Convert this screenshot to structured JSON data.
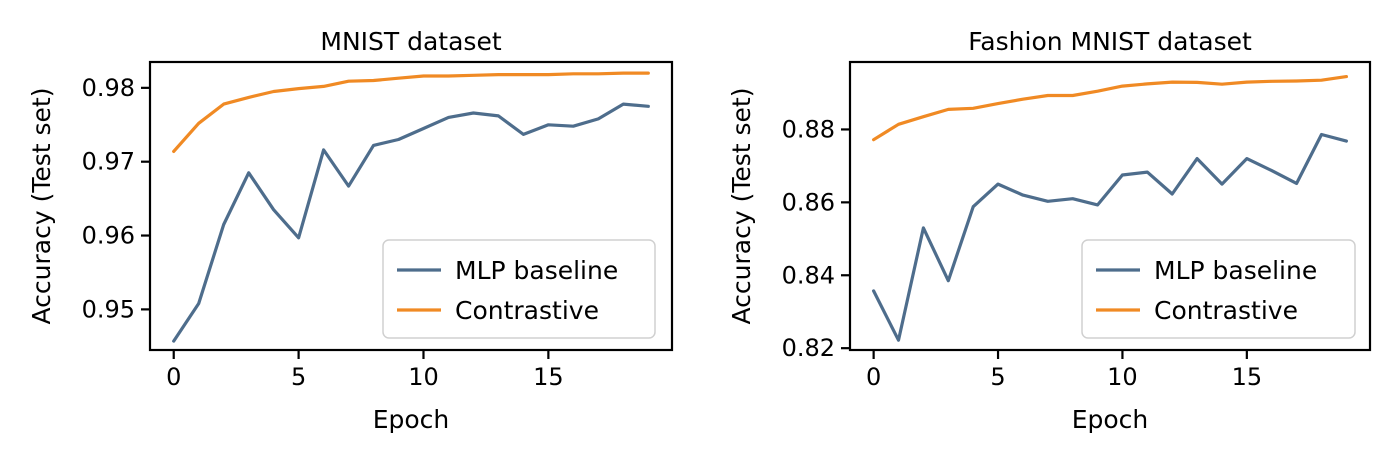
{
  "chart_data": [
    {
      "type": "line",
      "title": "MNIST dataset",
      "xlabel": "Epoch",
      "ylabel": "Accuracy (Test set)",
      "xlim": [
        -0.95,
        19.95
      ],
      "ylim": [
        0.9445,
        0.9835
      ],
      "xticks": [
        0,
        5,
        10,
        15
      ],
      "xtick_labels": [
        "0",
        "5",
        "10",
        "15"
      ],
      "yticks": [
        0.95,
        0.96,
        0.97,
        0.98
      ],
      "ytick_labels": [
        "0.95",
        "0.96",
        "0.97",
        "0.98"
      ],
      "legend": "lower-right",
      "grid": false,
      "x": [
        0,
        1,
        2,
        3,
        4,
        5,
        6,
        7,
        8,
        9,
        10,
        11,
        12,
        13,
        14,
        15,
        16,
        17,
        18,
        19
      ],
      "series": [
        {
          "name": "MLP baseline",
          "color": "#4e6d8c",
          "values": [
            0.9457,
            0.9508,
            0.9615,
            0.9685,
            0.9635,
            0.9597,
            0.9716,
            0.9667,
            0.9722,
            0.973,
            0.9745,
            0.976,
            0.9766,
            0.9762,
            0.9737,
            0.975,
            0.9748,
            0.9758,
            0.9778,
            0.9775
          ]
        },
        {
          "name": "Contrastive",
          "color": "#f08a24",
          "values": [
            0.9714,
            0.9752,
            0.9778,
            0.9787,
            0.9795,
            0.9799,
            0.9802,
            0.9809,
            0.981,
            0.9813,
            0.9816,
            0.9816,
            0.9817,
            0.9818,
            0.9818,
            0.9818,
            0.9819,
            0.9819,
            0.982,
            0.982
          ]
        }
      ]
    },
    {
      "type": "line",
      "title": "Fashion MNIST dataset",
      "xlabel": "Epoch",
      "ylabel": "Accuracy (Test set)",
      "xlim": [
        -0.95,
        19.95
      ],
      "ylim": [
        0.8195,
        0.8985
      ],
      "xticks": [
        0,
        5,
        10,
        15
      ],
      "xtick_labels": [
        "0",
        "5",
        "10",
        "15"
      ],
      "yticks": [
        0.82,
        0.84,
        0.86,
        0.88
      ],
      "ytick_labels": [
        "0.82",
        "0.84",
        "0.86",
        "0.88"
      ],
      "legend": "lower-right",
      "grid": false,
      "x": [
        0,
        1,
        2,
        3,
        4,
        5,
        6,
        7,
        8,
        9,
        10,
        11,
        12,
        13,
        14,
        15,
        16,
        17,
        18,
        19
      ],
      "series": [
        {
          "name": "MLP baseline",
          "color": "#4e6d8c",
          "values": [
            0.8357,
            0.8222,
            0.853,
            0.8385,
            0.8588,
            0.865,
            0.862,
            0.8603,
            0.861,
            0.8593,
            0.8675,
            0.8683,
            0.8623,
            0.872,
            0.865,
            0.872,
            0.8687,
            0.8652,
            0.8786,
            0.8768
          ]
        },
        {
          "name": "Contrastive",
          "color": "#f08a24",
          "values": [
            0.8772,
            0.8814,
            0.8835,
            0.8855,
            0.8858,
            0.8871,
            0.8883,
            0.8893,
            0.8893,
            0.8905,
            0.8919,
            0.8925,
            0.893,
            0.8929,
            0.8924,
            0.893,
            0.8932,
            0.8933,
            0.8935,
            0.8945
          ]
        }
      ]
    }
  ]
}
